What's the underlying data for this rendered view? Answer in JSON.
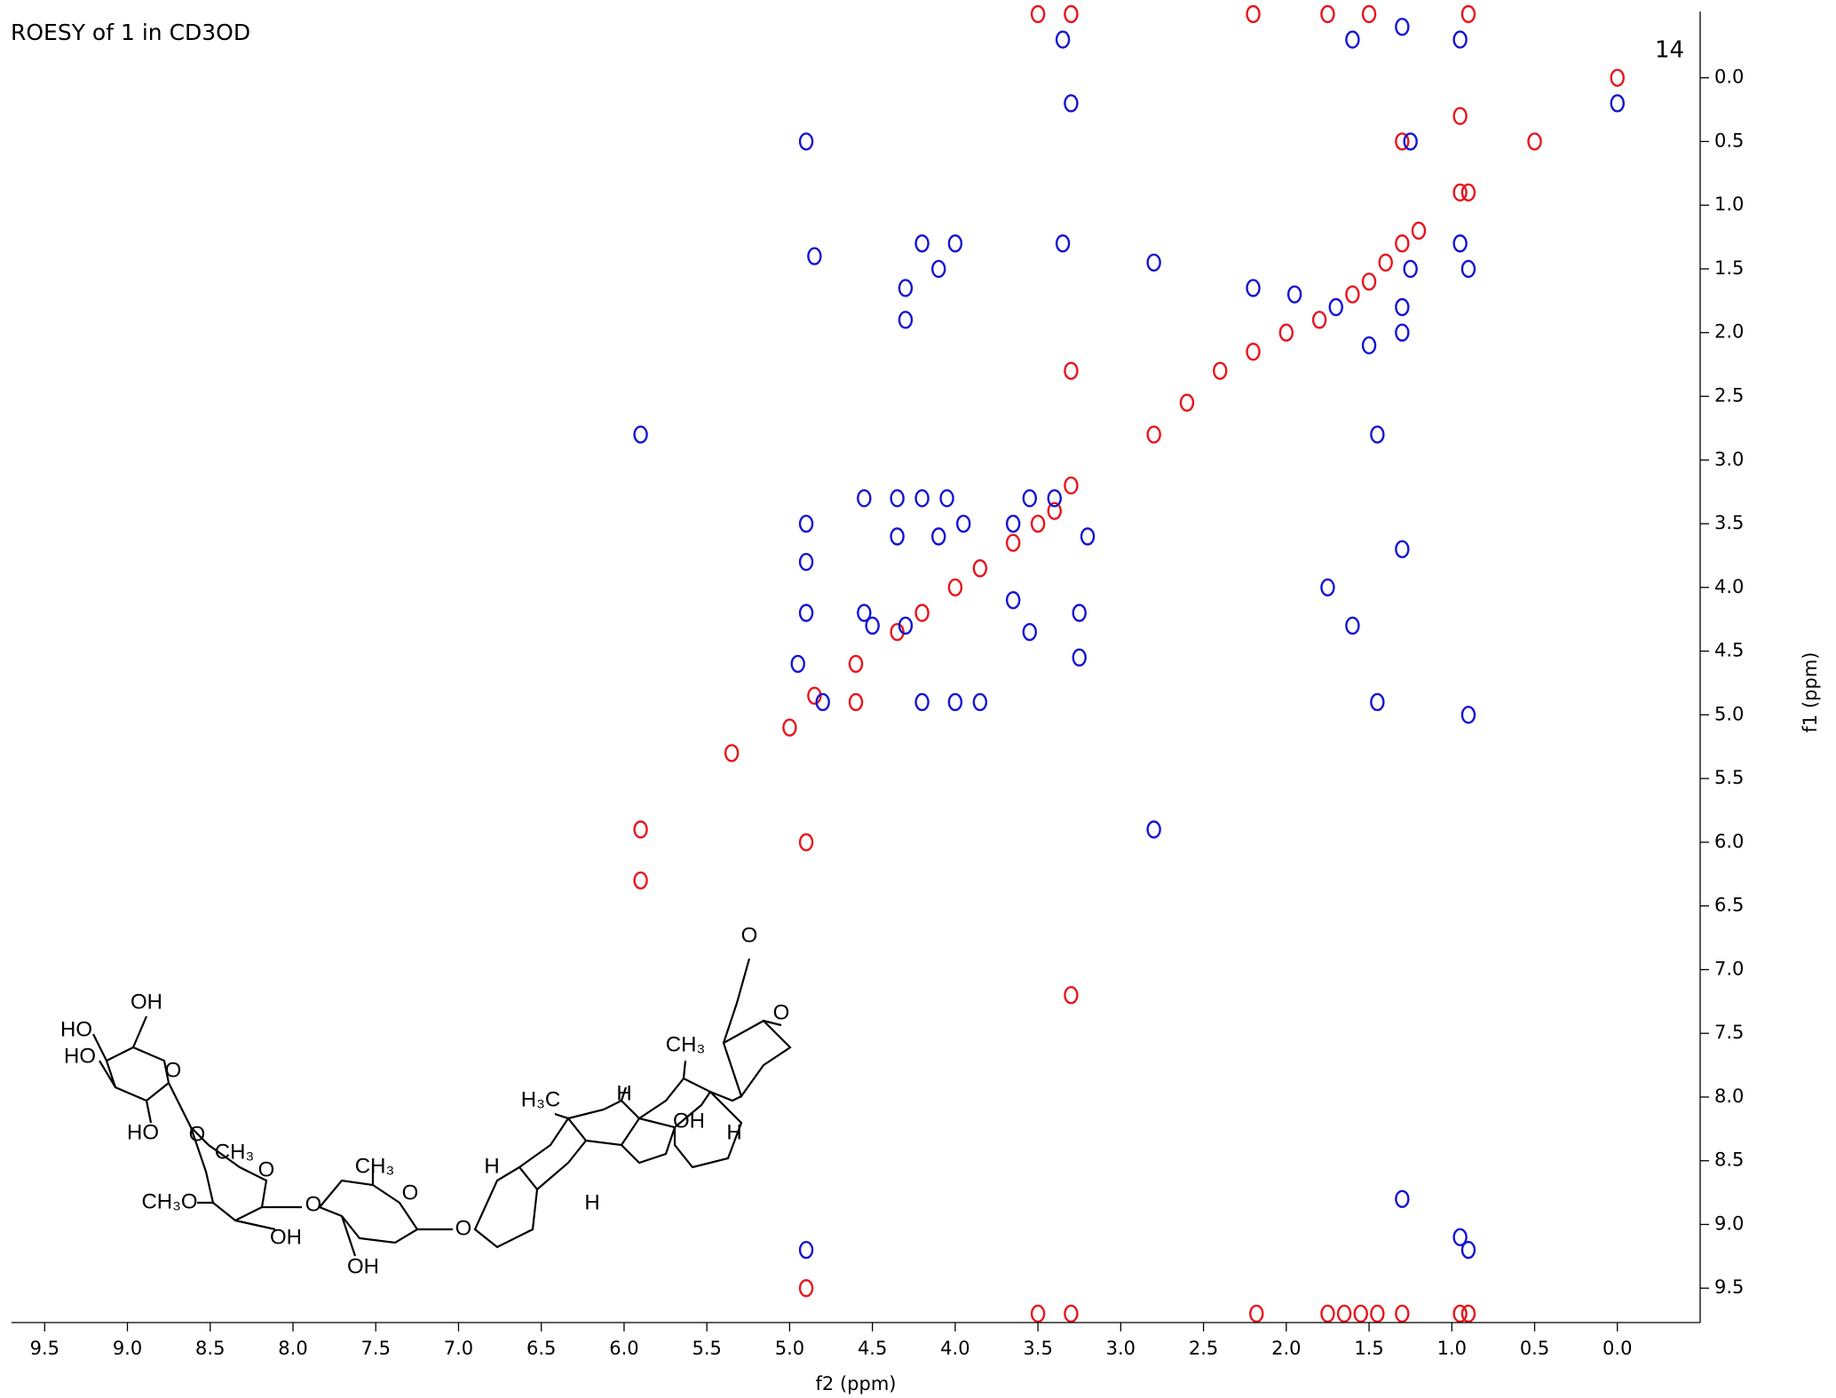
{
  "chart_data": {
    "type": "contour",
    "title": "ROESY of 1 in CD3OD",
    "annotation": "14",
    "x_label": "f2 (ppm)",
    "y_label": "f1 (ppm)",
    "xlim": [
      9.7,
      -0.5
    ],
    "ylim": [
      -0.52,
      9.77
    ],
    "xticks": [
      9.5,
      {
        "value": 9,
        "label": "9.0"
      },
      8.5,
      {
        "value": 8,
        "label": "8.0"
      },
      7.5,
      {
        "value": 7,
        "label": "7.0"
      },
      6.5,
      {
        "value": 6,
        "label": "6.0"
      },
      5.5,
      {
        "value": 5,
        "label": "5.0"
      },
      4.5,
      {
        "value": 4,
        "label": "4.0"
      },
      3.5,
      {
        "value": 3,
        "label": "3.0"
      },
      2.5,
      {
        "value": 2,
        "label": "2.0"
      },
      1.5,
      {
        "value": 1,
        "label": "1.0"
      },
      0.5,
      {
        "value": 0,
        "label": "0.0"
      }
    ],
    "yticks": [
      {
        "value": 0,
        "label": "0.0"
      },
      0.5,
      {
        "value": 1,
        "label": "1.0"
      },
      1.5,
      {
        "value": 2,
        "label": "2.0"
      },
      2.5,
      {
        "value": 3,
        "label": "3.0"
      },
      3.5,
      {
        "value": 4,
        "label": "4.0"
      },
      4.5,
      {
        "value": 5,
        "label": "5.0"
      },
      5.5,
      {
        "value": 6,
        "label": "6.0"
      },
      6.5,
      {
        "value": 7,
        "label": "7.0"
      },
      7.5,
      {
        "value": 8,
        "label": "8.0"
      },
      8.5,
      {
        "value": 9,
        "label": "9.0"
      },
      9.5
    ],
    "series": [
      {
        "color": "#e8141c",
        "x": [
          3.3,
          3.4,
          3.5,
          3.65,
          3.85,
          4.0,
          4.2,
          4.35,
          4.6,
          4.85,
          4.6,
          5.9,
          5.9,
          2.8,
          2.6,
          2.4,
          2.2,
          2.0,
          1.8,
          1.6,
          1.5,
          1.4,
          1.3,
          1.2,
          0.95,
          0.9,
          1.3,
          0.95,
          0.5,
          0.0,
          3.3,
          3.3,
          5.35,
          5.0,
          4.9,
          4.9,
          1.75,
          1.65,
          1.55,
          1.45,
          1.3,
          0.95,
          0.9,
          2.18,
          3.5,
          3.3,
          3.5,
          3.3,
          2.2,
          1.75,
          1.5,
          0.9
        ],
        "y": [
          3.2,
          3.4,
          3.5,
          3.65,
          3.85,
          4.0,
          4.2,
          4.35,
          4.6,
          4.85,
          4.9,
          5.9,
          6.3,
          2.8,
          2.55,
          2.3,
          2.15,
          2.0,
          1.9,
          1.7,
          1.6,
          1.45,
          1.3,
          1.2,
          0.9,
          0.9,
          0.5,
          0.3,
          0.5,
          0.0,
          2.3,
          7.2,
          5.3,
          5.1,
          6.0,
          9.5,
          9.7,
          9.7,
          9.7,
          9.7,
          9.7,
          9.7,
          9.7,
          9.7,
          9.7,
          9.7,
          -0.5,
          -0.5,
          -0.5,
          -0.5,
          -0.5,
          -0.5
        ]
      },
      {
        "color": "#1414d2",
        "x": [
          5.9,
          4.9,
          4.9,
          4.9,
          4.95,
          4.55,
          4.35,
          4.2,
          4.05,
          4.35,
          4.1,
          3.95,
          3.65,
          3.55,
          3.4,
          3.2,
          3.25,
          3.25,
          3.55,
          3.65,
          4.5,
          4.3,
          4.55,
          4.2,
          4.0,
          3.85,
          4.8,
          4.85,
          4.1,
          4.3,
          4.3,
          4.0,
          4.2,
          3.35,
          2.8,
          2.2,
          1.95,
          1.7,
          1.5,
          1.3,
          1.25,
          0.95,
          0.9,
          1.25,
          1.3,
          1.6,
          1.75,
          1.3,
          1.45,
          0.9,
          1.3,
          0.95,
          0.9,
          1.45,
          2.8,
          4.9,
          4.9,
          3.3,
          3.35,
          1.6,
          1.3,
          0.95,
          0.0
        ],
        "y": [
          2.8,
          3.5,
          3.8,
          4.2,
          4.6,
          3.3,
          3.3,
          3.3,
          3.3,
          3.6,
          3.6,
          3.5,
          3.5,
          3.3,
          3.3,
          3.6,
          4.2,
          4.55,
          4.35,
          4.1,
          4.3,
          4.3,
          4.2,
          4.9,
          4.9,
          4.9,
          4.9,
          1.4,
          1.5,
          1.65,
          1.9,
          1.3,
          1.3,
          1.3,
          1.45,
          1.65,
          1.7,
          1.8,
          2.1,
          1.8,
          1.5,
          1.3,
          1.5,
          0.5,
          2.0,
          4.3,
          4.0,
          3.7,
          4.9,
          5.0,
          8.8,
          9.1,
          9.2,
          2.8,
          5.9,
          0.5,
          9.2,
          0.2,
          -0.3,
          -0.3,
          -0.4,
          -0.3,
          0.2
        ]
      }
    ]
  },
  "structure": {
    "labels": [
      "OH",
      "HO",
      "HO",
      "O",
      "HO",
      "O",
      "CH₃",
      "O",
      "CH₃O",
      "OH",
      "O",
      "CH₃",
      "O",
      "OH",
      "O",
      "H₃C",
      "H",
      "CH₃",
      "OH",
      "H",
      "H",
      "H",
      "O",
      "O"
    ]
  }
}
